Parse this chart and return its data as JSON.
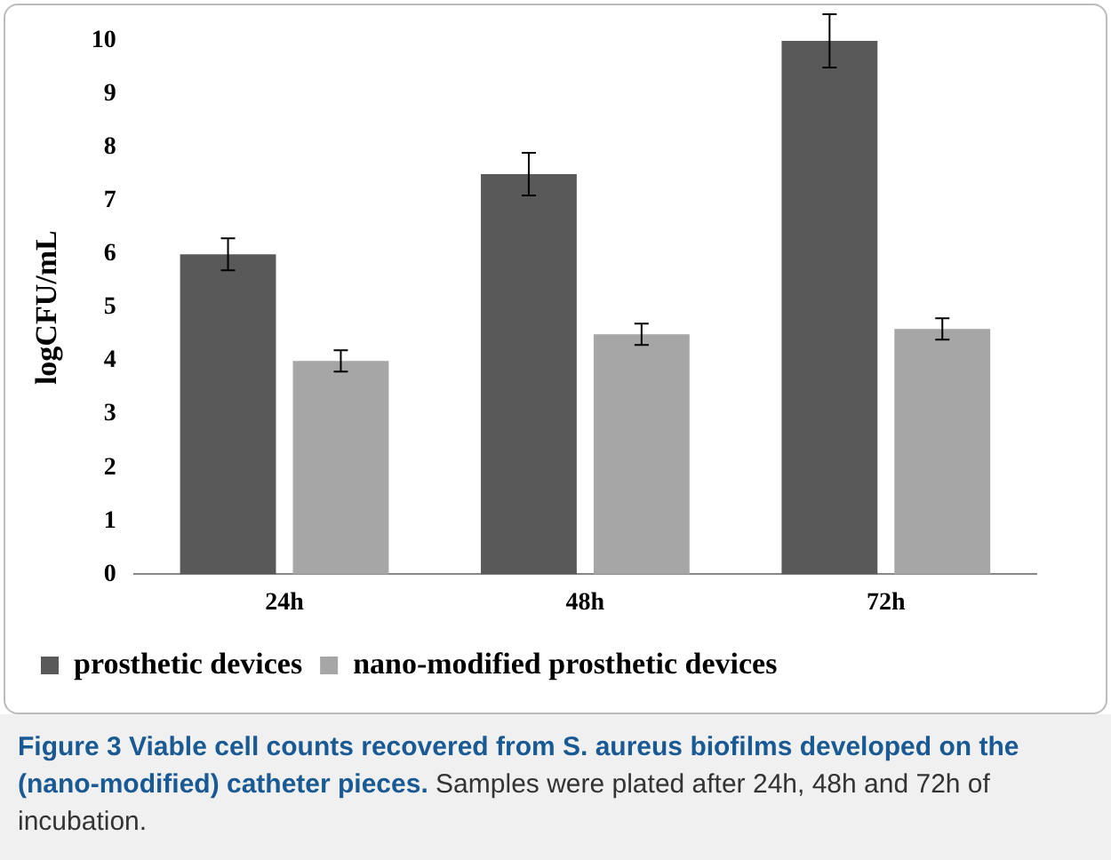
{
  "chart_data": {
    "type": "bar",
    "ylabel": "logCFU/mL",
    "categories": [
      "24h",
      "48h",
      "72h"
    ],
    "series": [
      {
        "name": "prosthetic devices",
        "color": "#595959",
        "values": [
          6.0,
          7.5,
          10.0
        ],
        "errors": [
          0.3,
          0.4,
          0.5
        ]
      },
      {
        "name": "nano-modified prosthetic devices",
        "color": "#a6a6a6",
        "values": [
          4.0,
          4.5,
          4.6
        ],
        "errors": [
          0.2,
          0.2,
          0.2
        ]
      }
    ],
    "ylim": [
      0,
      10
    ],
    "yticks": [
      0,
      1,
      2,
      3,
      4,
      5,
      6,
      7,
      8,
      9,
      10
    ],
    "grid": false,
    "legend": "bottom",
    "annotations": [
      "Figure 3 Viable cell counts recovered from S. aureus biofilms developed on the (nano-modified) catheter pieces.",
      "Samples were plated after 24h, 48h and 72h of incubation."
    ]
  }
}
